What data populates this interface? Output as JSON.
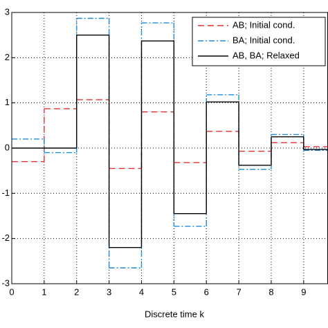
{
  "chart_data": {
    "type": "step",
    "xlabel": "Discrete time k",
    "x": [
      0,
      1,
      2,
      3,
      4,
      5,
      6,
      7,
      8,
      9
    ],
    "series": [
      {
        "name": "AB; Initial cond.",
        "color": "#e03030",
        "dash": "9 5",
        "values": [
          -0.3,
          0.87,
          1.07,
          -0.45,
          0.8,
          -0.32,
          0.37,
          -0.07,
          0.12,
          0.03
        ]
      },
      {
        "name": "BA; Initial cond.",
        "color": "#1a8cd8",
        "dash": "8 3 2 3",
        "values": [
          0.2,
          -0.1,
          2.87,
          -2.65,
          2.77,
          -1.73,
          1.18,
          -0.47,
          0.3,
          -0.05
        ]
      },
      {
        "name": "AB, BA; Relaxed",
        "color": "#000000",
        "dash": "none",
        "values": [
          0,
          0,
          2.5,
          -2.2,
          2.37,
          -1.45,
          1.02,
          -0.38,
          0.25,
          -0.03
        ]
      }
    ],
    "xlim": [
      0,
      9.75
    ],
    "ylim": [
      -3,
      3
    ],
    "xticks": [
      0,
      1,
      2,
      3,
      4,
      5,
      6,
      7,
      8,
      9
    ],
    "yticks": [
      -3,
      -2,
      -1,
      0,
      1,
      2,
      3
    ],
    "grid": true,
    "legend": "upper right"
  }
}
